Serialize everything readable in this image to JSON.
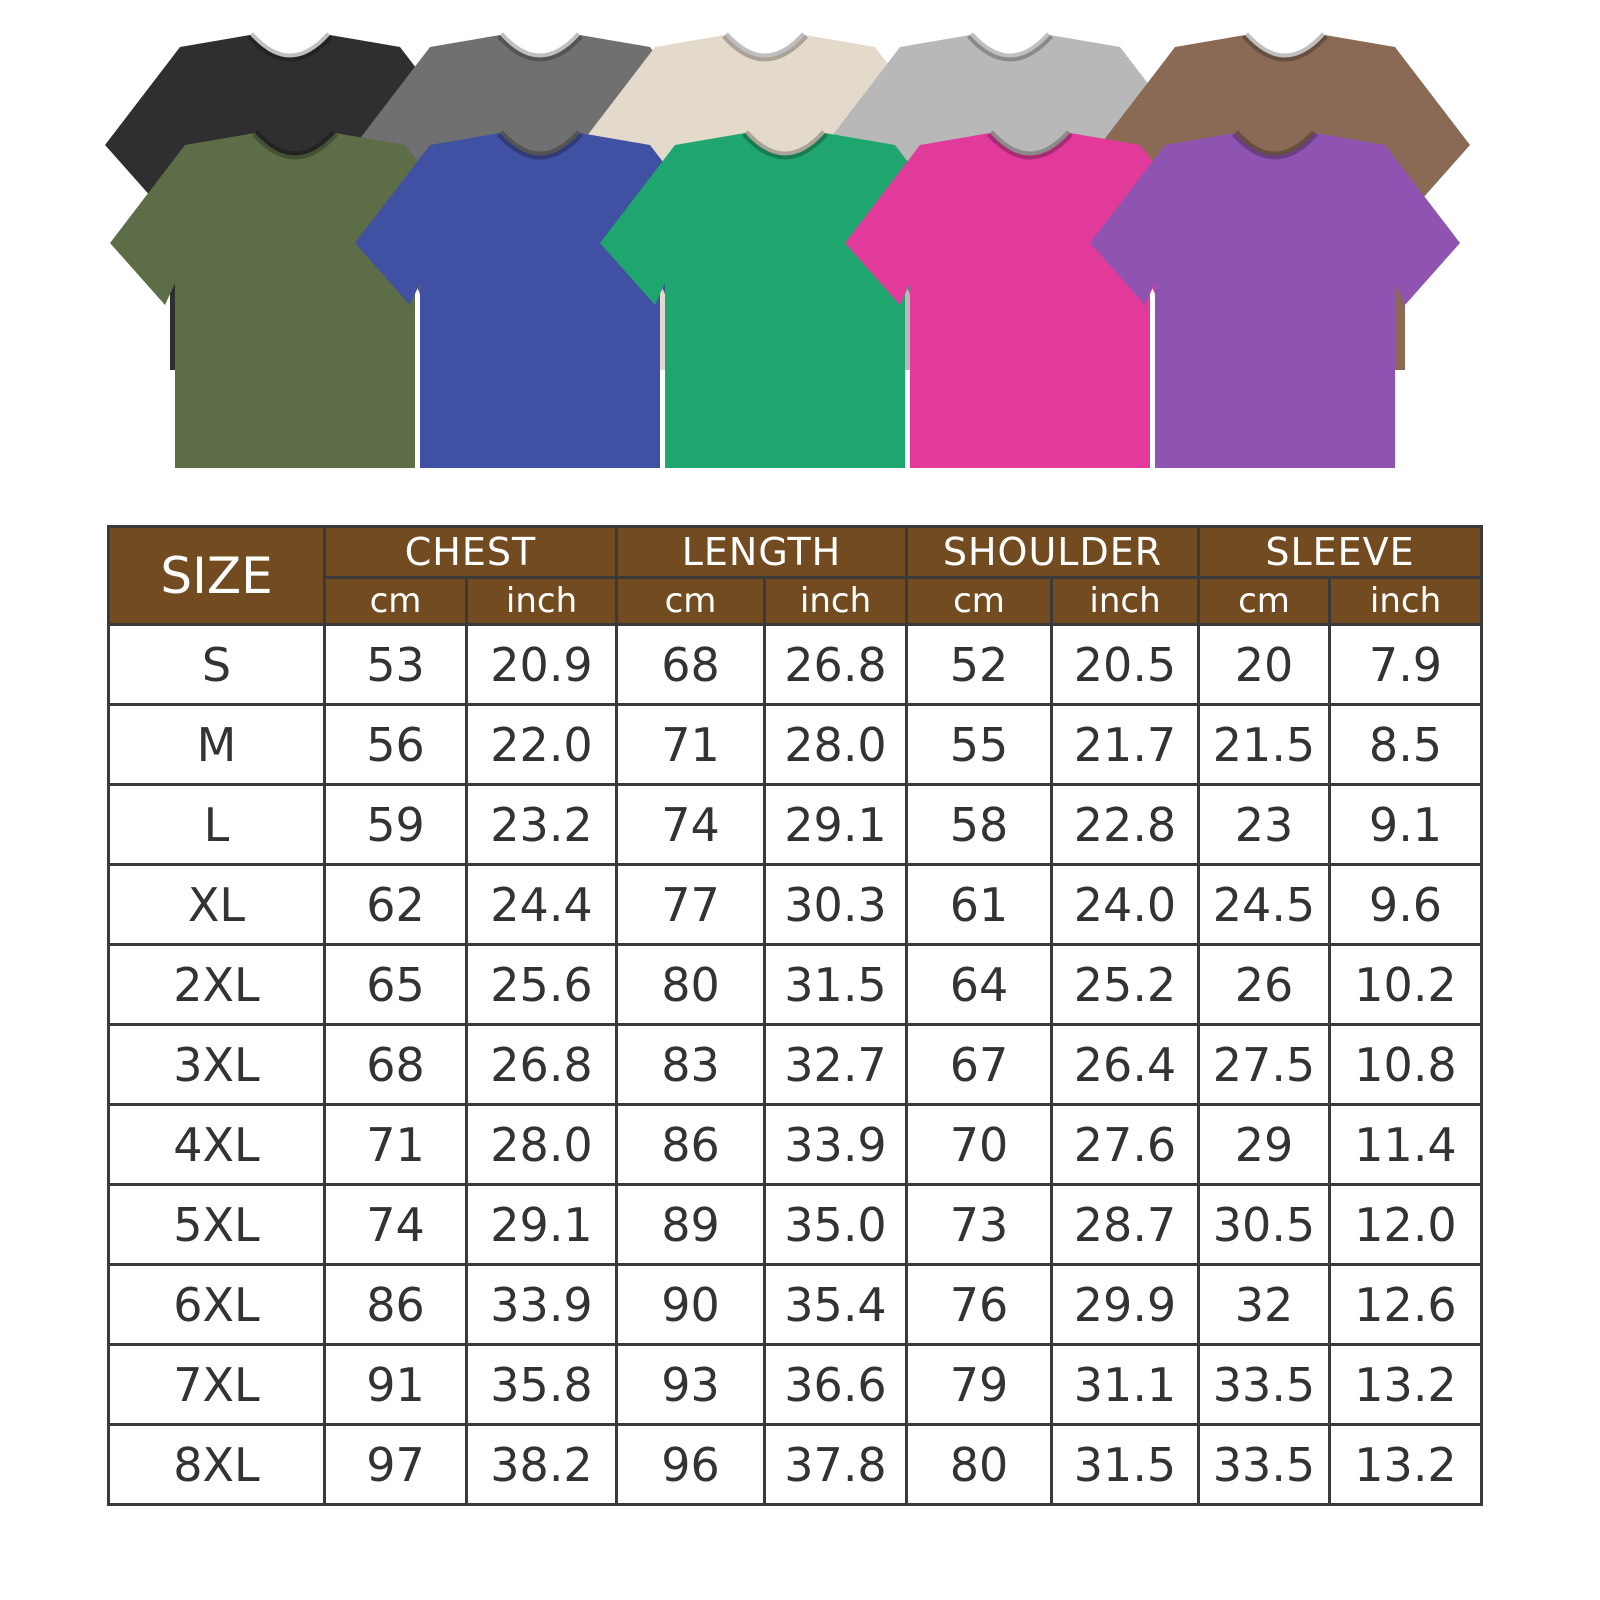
{
  "shirts": [
    {
      "row": "back",
      "color": "#2f2f2f"
    },
    {
      "row": "back",
      "color": "#707070"
    },
    {
      "row": "back",
      "color": "#e4dacb"
    },
    {
      "row": "back",
      "color": "#b8b8b8"
    },
    {
      "row": "back",
      "color": "#8a6a55"
    },
    {
      "row": "front",
      "color": "#5c6d47"
    },
    {
      "row": "front",
      "color": "#4050a2"
    },
    {
      "row": "front",
      "color": "#1fa66e"
    },
    {
      "row": "front",
      "color": "#e23a9b"
    },
    {
      "row": "front",
      "color": "#8f53b2"
    }
  ],
  "table": {
    "header_color": "#734b20",
    "size_label": "SIZE",
    "groups": [
      "CHEST",
      "LENGTH",
      "SHOULDER",
      "SLEEVE"
    ],
    "units": [
      "cm",
      "inch"
    ],
    "rows": [
      [
        "S",
        "53",
        "20.9",
        "68",
        "26.8",
        "52",
        "20.5",
        "20",
        "7.9"
      ],
      [
        "M",
        "56",
        "22.0",
        "71",
        "28.0",
        "55",
        "21.7",
        "21.5",
        "8.5"
      ],
      [
        "L",
        "59",
        "23.2",
        "74",
        "29.1",
        "58",
        "22.8",
        "23",
        "9.1"
      ],
      [
        "XL",
        "62",
        "24.4",
        "77",
        "30.3",
        "61",
        "24.0",
        "24.5",
        "9.6"
      ],
      [
        "2XL",
        "65",
        "25.6",
        "80",
        "31.5",
        "64",
        "25.2",
        "26",
        "10.2"
      ],
      [
        "3XL",
        "68",
        "26.8",
        "83",
        "32.7",
        "67",
        "26.4",
        "27.5",
        "10.8"
      ],
      [
        "4XL",
        "71",
        "28.0",
        "86",
        "33.9",
        "70",
        "27.6",
        "29",
        "11.4"
      ],
      [
        "5XL",
        "74",
        "29.1",
        "89",
        "35.0",
        "73",
        "28.7",
        "30.5",
        "12.0"
      ],
      [
        "6XL",
        "86",
        "33.9",
        "90",
        "35.4",
        "76",
        "29.9",
        "32",
        "12.6"
      ],
      [
        "7XL",
        "91",
        "35.8",
        "93",
        "36.6",
        "79",
        "31.1",
        "33.5",
        "13.2"
      ],
      [
        "8XL",
        "97",
        "38.2",
        "96",
        "37.8",
        "80",
        "31.5",
        "33.5",
        "13.2"
      ]
    ]
  }
}
